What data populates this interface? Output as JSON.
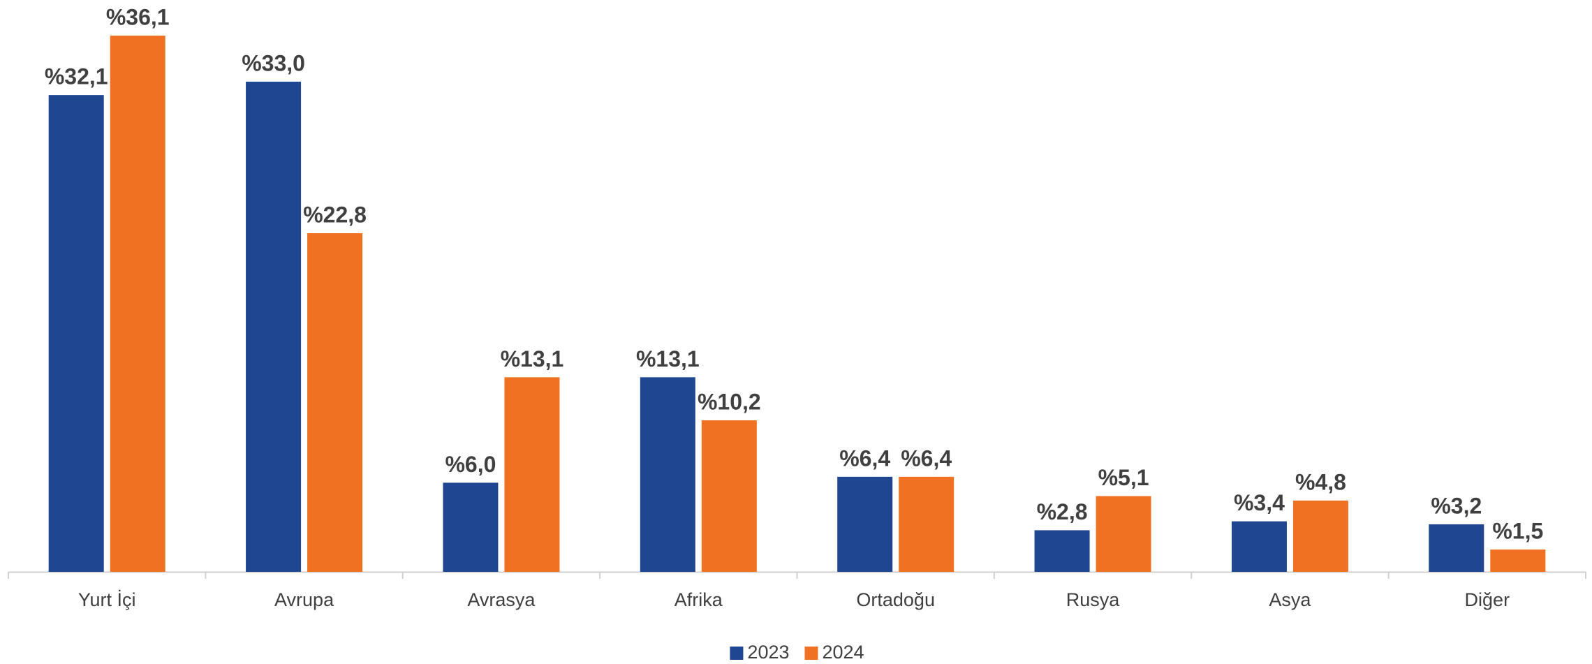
{
  "chart_data": {
    "type": "bar",
    "categories": [
      "Yurt İçi",
      "Avrupa",
      "Avrasya",
      "Afrika",
      "Ortadoğu",
      "Rusya",
      "Asya",
      "Diğer"
    ],
    "series": [
      {
        "name": "2023",
        "color": "#1f4690",
        "values": [
          32.1,
          33.0,
          6.0,
          13.1,
          6.4,
          2.8,
          3.4,
          3.2
        ],
        "value_labels": [
          "%32,1",
          "%33,0",
          "%6,0",
          "%13,1",
          "%6,4",
          "%2,8",
          "%3,4",
          "%3,2"
        ]
      },
      {
        "name": "2024",
        "color": "#f07122",
        "values": [
          36.1,
          22.8,
          13.1,
          10.2,
          6.4,
          5.1,
          4.8,
          1.5
        ],
        "value_labels": [
          "%36,1",
          "%22,8",
          "%13,1",
          "%10,2",
          "%6,4",
          "%5,1",
          "%4,8",
          "%1,5"
        ]
      }
    ],
    "ylim": [
      0,
      38.5
    ],
    "grid": false,
    "legend": "bottom"
  }
}
